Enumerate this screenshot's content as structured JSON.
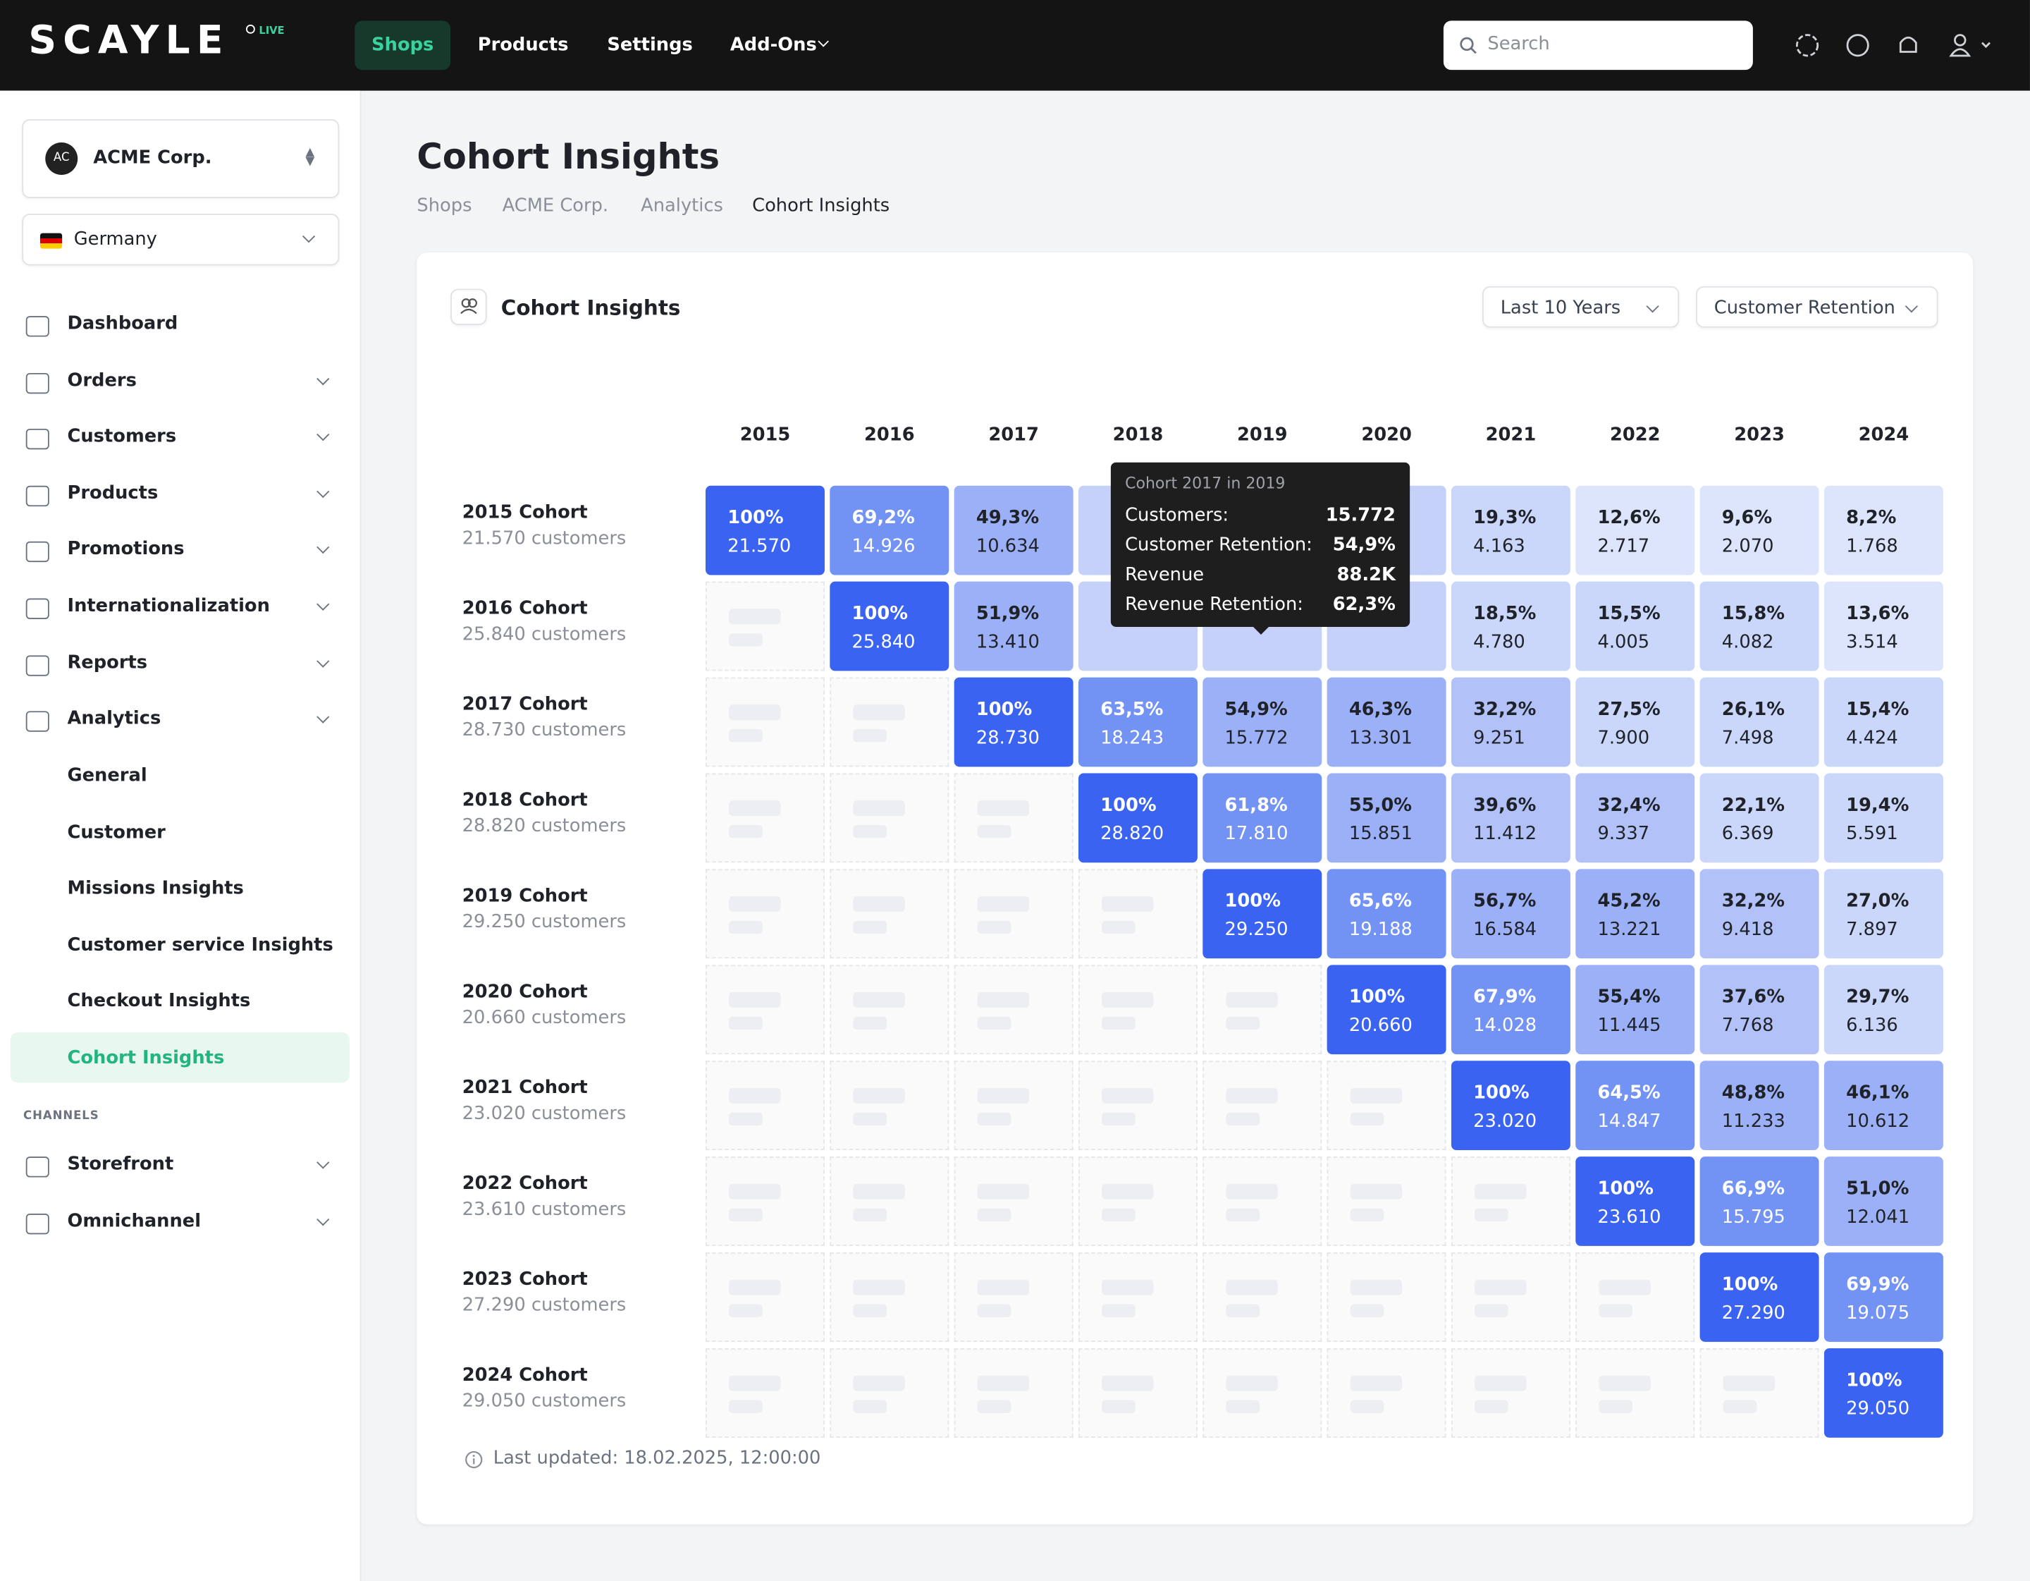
{
  "header": {
    "logo": "SCAYLE",
    "badge": "LIVE",
    "nav": [
      "Shops",
      "Products",
      "Settings",
      "Add-Ons"
    ],
    "search_placeholder": "Search"
  },
  "sidebar": {
    "org": {
      "initials": "AC",
      "name": "ACME Corp."
    },
    "country": "Germany",
    "nav": [
      "Dashboard",
      "Orders",
      "Customers",
      "Products",
      "Promotions",
      "Internationalization",
      "Reports",
      "Analytics"
    ],
    "analytics_sub": [
      "General",
      "Customer",
      "Missions Insights",
      "Customer service Insights",
      "Checkout Insights",
      "Cohort Insights"
    ],
    "section": "CHANNELS",
    "channels": [
      "Storefront",
      "Omnichannel"
    ]
  },
  "page": {
    "title": "Cohort Insights",
    "breadcrumb": [
      "Shops",
      "ACME Corp.",
      "Analytics",
      "Cohort Insights"
    ]
  },
  "card": {
    "title": "Cohort Insights",
    "filters": [
      "Last 10 Years",
      "Customer Retention"
    ],
    "last_updated": "Last updated: 18.02.2025, 12:00:00"
  },
  "table": {
    "columns": [
      "2015",
      "2016",
      "2017",
      "2018",
      "2019",
      "2020",
      "2021",
      "2022",
      "2023",
      "2024"
    ],
    "rows": [
      {
        "label": "2015 Cohort",
        "customers": "21.570 customers",
        "cells": [
          {
            "pct": "100%",
            "count": "21.570"
          },
          {
            "pct": "69,2%",
            "count": "14.926"
          },
          {
            "pct": "49,3%",
            "count": "10.634"
          },
          null,
          null,
          null,
          {
            "pct": "19,3%",
            "count": "4.163"
          },
          {
            "pct": "12,6%",
            "count": "2.717"
          },
          {
            "pct": "9,6%",
            "count": "2.070"
          },
          {
            "pct": "8,2%",
            "count": "1.768"
          }
        ]
      },
      {
        "label": "2016 Cohort",
        "customers": "25.840 customers",
        "cells": [
          {
            "pct": "100%",
            "count": "25.840"
          },
          {
            "pct": "51,9%",
            "count": "13.410"
          },
          null,
          null,
          null,
          {
            "pct": "18,5%",
            "count": "4.780"
          },
          {
            "pct": "15,5%",
            "count": "4.005"
          },
          {
            "pct": "15,8%",
            "count": "4.082"
          },
          {
            "pct": "13,6%",
            "count": "3.514"
          }
        ]
      },
      {
        "label": "2017 Cohort",
        "customers": "28.730 customers",
        "cells": [
          {
            "pct": "100%",
            "count": "28.730"
          },
          {
            "pct": "63,5%",
            "count": "18.243"
          },
          {
            "pct": "54,9%",
            "count": "15.772"
          },
          {
            "pct": "46,3%",
            "count": "13.301"
          },
          {
            "pct": "32,2%",
            "count": "9.251"
          },
          {
            "pct": "27,5%",
            "count": "7.900"
          },
          {
            "pct": "26,1%",
            "count": "7.498"
          },
          {
            "pct": "15,4%",
            "count": "4.424"
          }
        ]
      },
      {
        "label": "2018 Cohort",
        "customers": "28.820 customers",
        "cells": [
          {
            "pct": "100%",
            "count": "28.820"
          },
          {
            "pct": "61,8%",
            "count": "17.810"
          },
          {
            "pct": "55,0%",
            "count": "15.851"
          },
          {
            "pct": "39,6%",
            "count": "11.412"
          },
          {
            "pct": "32,4%",
            "count": "9.337"
          },
          {
            "pct": "22,1%",
            "count": "6.369"
          },
          {
            "pct": "19,4%",
            "count": "5.591"
          }
        ]
      },
      {
        "label": "2019 Cohort",
        "customers": "29.250 customers",
        "cells": [
          {
            "pct": "100%",
            "count": "29.250"
          },
          {
            "pct": "65,6%",
            "count": "19.188"
          },
          {
            "pct": "56,7%",
            "count": "16.584"
          },
          {
            "pct": "45,2%",
            "count": "13.221"
          },
          {
            "pct": "32,2%",
            "count": "9.418"
          },
          {
            "pct": "27,0%",
            "count": "7.897"
          }
        ]
      },
      {
        "label": "2020 Cohort",
        "customers": "20.660 customers",
        "cells": [
          {
            "pct": "100%",
            "count": "20.660"
          },
          {
            "pct": "67,9%",
            "count": "14.028"
          },
          {
            "pct": "55,4%",
            "count": "11.445"
          },
          {
            "pct": "37,6%",
            "count": "7.768"
          },
          {
            "pct": "29,7%",
            "count": "6.136"
          }
        ]
      },
      {
        "label": "2021 Cohort",
        "customers": "23.020 customers",
        "cells": [
          {
            "pct": "100%",
            "count": "23.020"
          },
          {
            "pct": "64,5%",
            "count": "14.847"
          },
          {
            "pct": "48,8%",
            "count": "11.233"
          },
          {
            "pct": "46,1%",
            "count": "10.612"
          }
        ]
      },
      {
        "label": "2022 Cohort",
        "customers": "23.610 customers",
        "cells": [
          {
            "pct": "100%",
            "count": "23.610"
          },
          {
            "pct": "66,9%",
            "count": "15.795"
          },
          {
            "pct": "51,0%",
            "count": "12.041"
          }
        ]
      },
      {
        "label": "2023 Cohort",
        "customers": "27.290 customers",
        "cells": [
          {
            "pct": "100%",
            "count": "27.290"
          },
          {
            "pct": "69,9%",
            "count": "19.075"
          }
        ]
      },
      {
        "label": "2024 Cohort",
        "customers": "29.050 customers",
        "cells": [
          {
            "pct": "100%",
            "count": "29.050"
          }
        ]
      }
    ]
  },
  "tooltip": {
    "title": "Cohort 2017 in 2019",
    "rows": [
      [
        "Customers:",
        "15.772"
      ],
      [
        "Customer Retention:",
        "54,9%"
      ],
      [
        "Revenue",
        "88.2K"
      ],
      [
        "Revenue Retention:",
        "62,3%"
      ]
    ]
  }
}
